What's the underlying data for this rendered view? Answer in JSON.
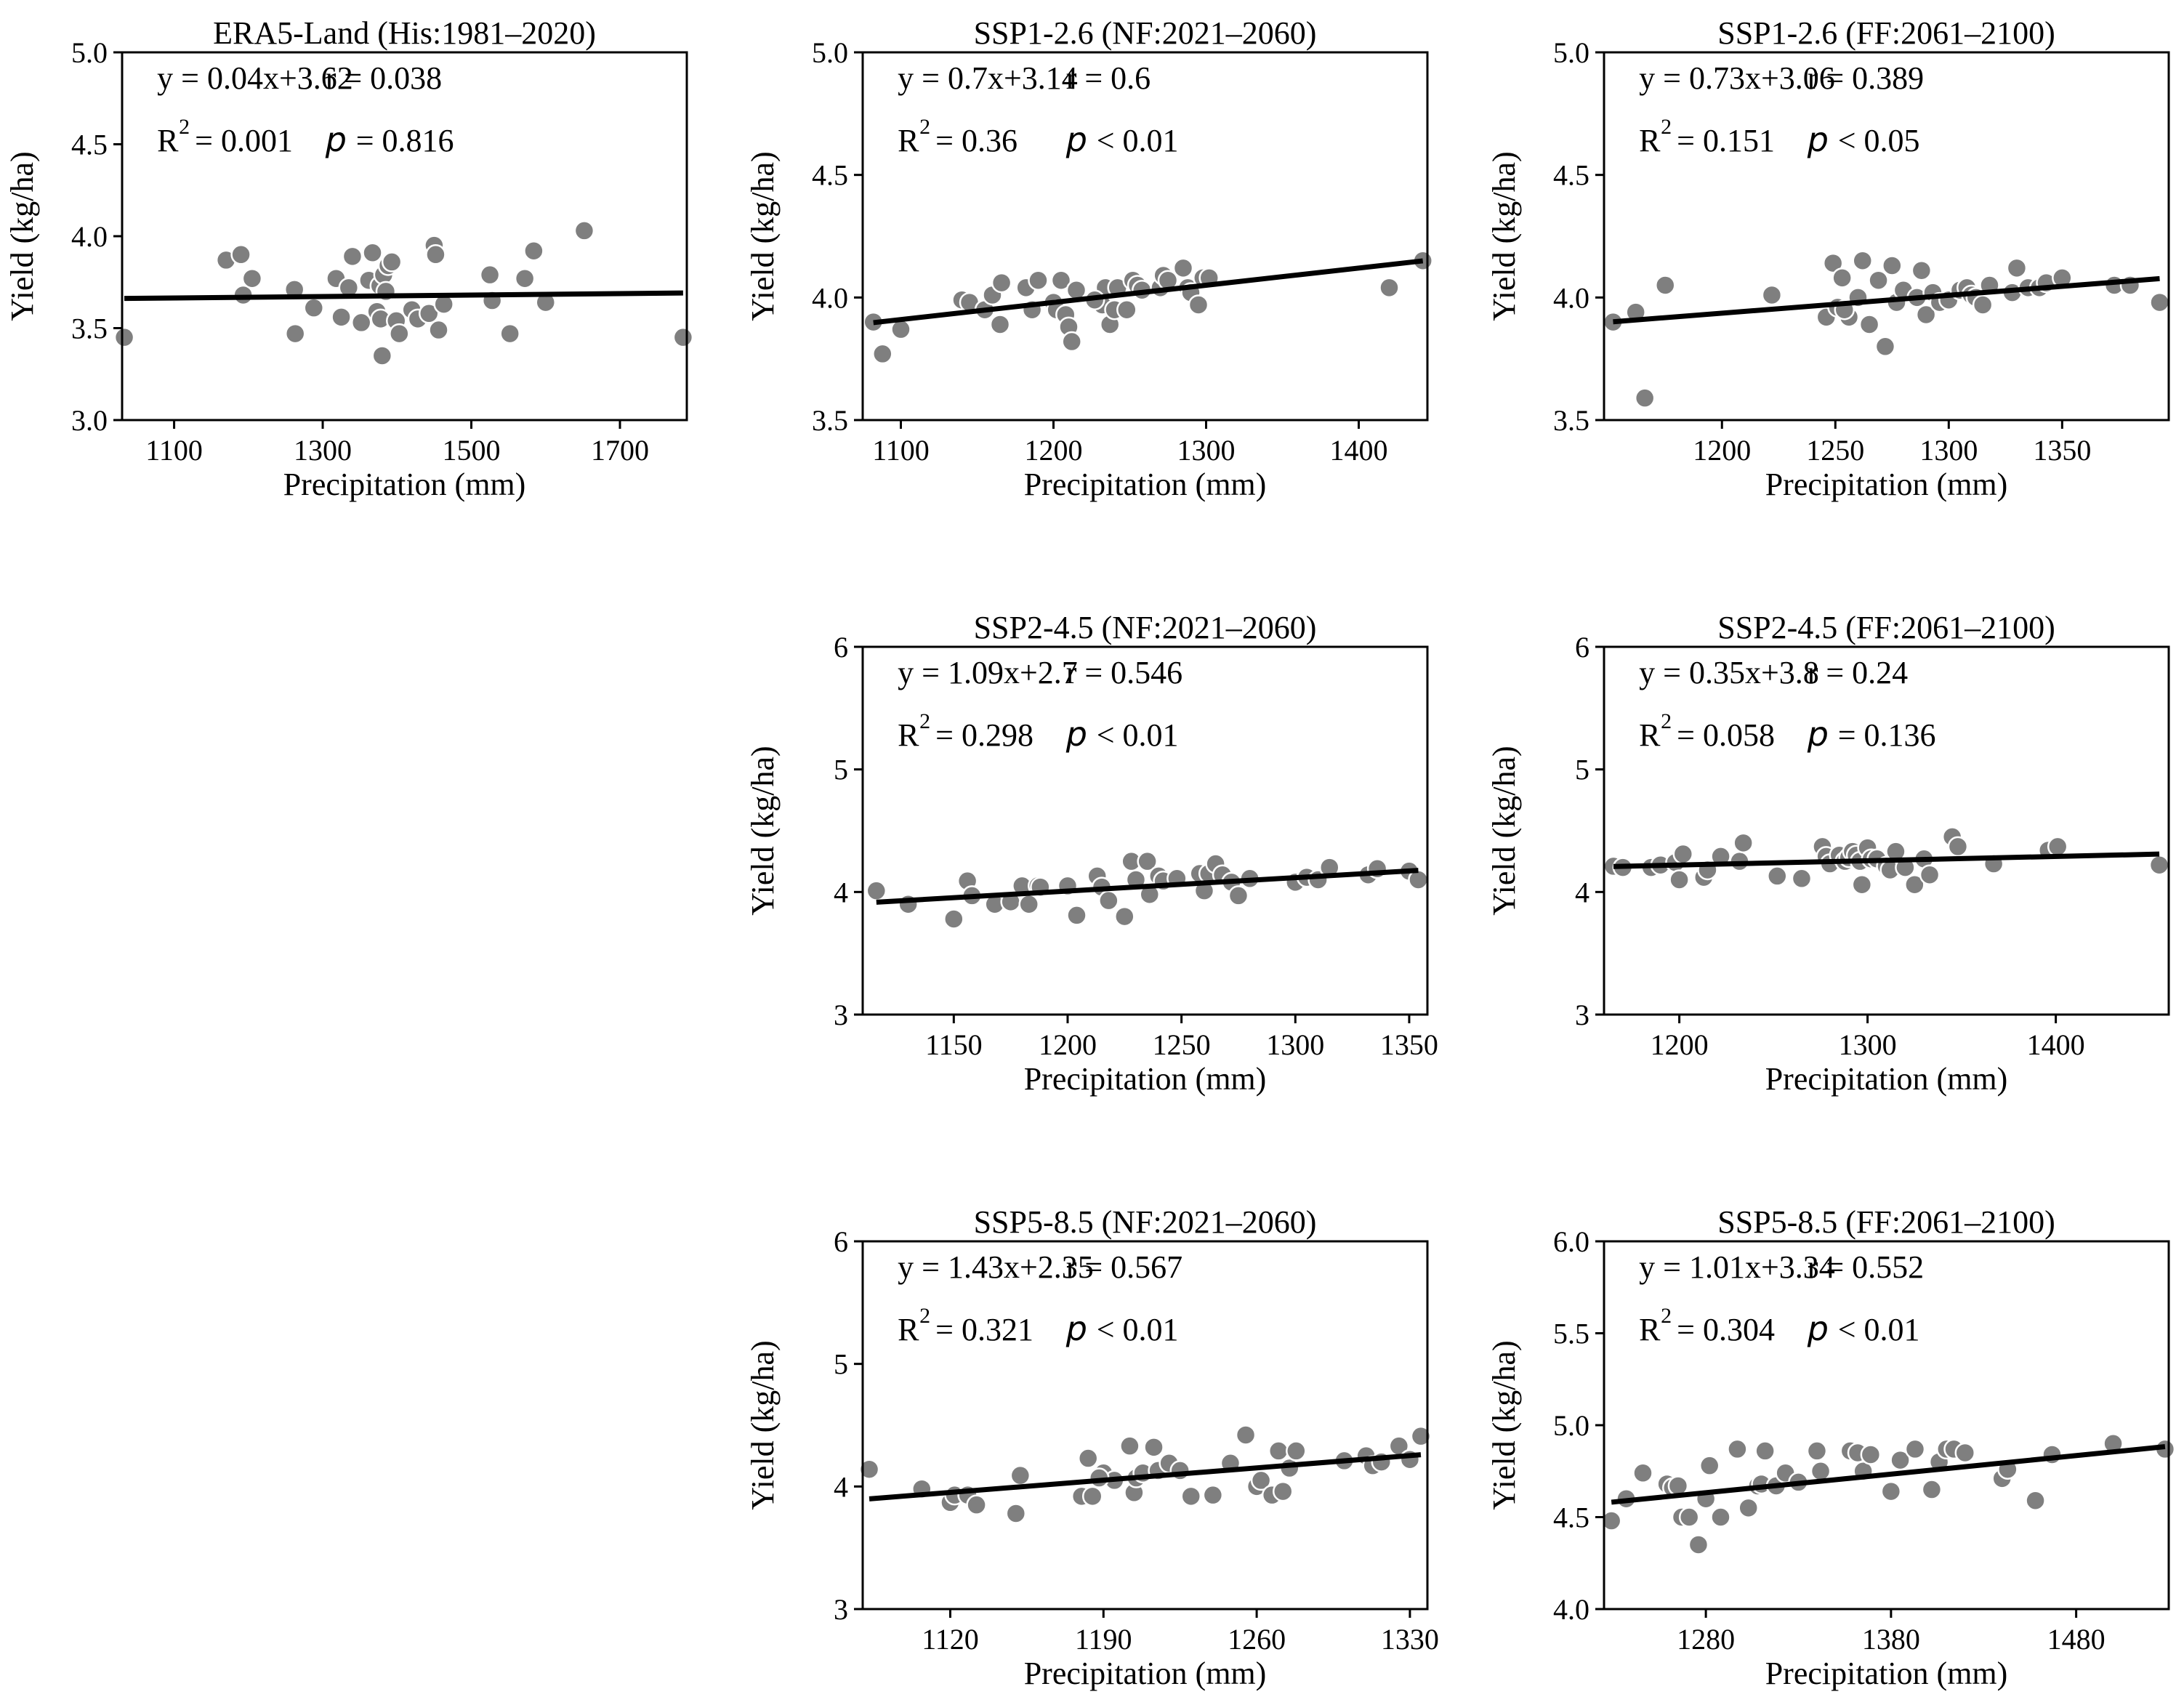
{
  "figure": {
    "x_axis_label": "Precipitation (mm)",
    "y_axis_label": "Yield (kg/ha)"
  },
  "colors": {
    "point_fill": "#7f7f7f",
    "point_stroke": "#ffffff",
    "fit_line": "#000000",
    "axis": "#000000"
  },
  "chart_data": [
    {
      "type": "scatter",
      "title": "ERA5-Land (His:1981–2020)",
      "xlabel": "Precipitation (mm)",
      "ylabel": "Yield (kg/ha)",
      "xlim": [
        1030,
        1790
      ],
      "ylim": [
        3.0,
        5.0
      ],
      "xticks": [
        1100,
        1300,
        1500,
        1700
      ],
      "yticks": [
        3.0,
        3.5,
        4.0,
        4.5,
        5.0
      ],
      "ytick_labels": [
        "3.0",
        "3.5",
        "4.0",
        "4.5",
        "5.0"
      ],
      "fit": {
        "slope_per_1000mm": 0.04,
        "intercept": 3.62
      },
      "stats": {
        "equation": "y = 0.04x+3.62",
        "r_label": "r = 0.038",
        "r2_sup": "2",
        "r2_value": "= 0.001",
        "p_symbol": "p",
        "p_value": "= 0.816"
      },
      "x": [
        1033,
        1170,
        1190,
        1193,
        1205,
        1262,
        1263,
        1288,
        1318,
        1325,
        1335,
        1340,
        1352,
        1362,
        1367,
        1373,
        1377,
        1378,
        1380,
        1382,
        1385,
        1388,
        1393,
        1399,
        1403,
        1420,
        1428,
        1443,
        1450,
        1452,
        1456,
        1463,
        1525,
        1528,
        1552,
        1572,
        1584,
        1600,
        1652,
        1785
      ],
      "y": [
        3.45,
        3.87,
        3.9,
        3.68,
        3.77,
        3.71,
        3.47,
        3.61,
        3.77,
        3.56,
        3.72,
        3.89,
        3.53,
        3.76,
        3.91,
        3.59,
        3.73,
        3.55,
        3.35,
        3.79,
        3.7,
        3.84,
        3.86,
        3.54,
        3.47,
        3.6,
        3.55,
        3.58,
        3.95,
        3.9,
        3.49,
        3.63,
        3.79,
        3.65,
        3.47,
        3.77,
        3.92,
        3.64,
        4.03,
        3.45
      ]
    },
    {
      "type": "scatter",
      "title": "SSP1-2.6 (NF:2021–2060)",
      "xlabel": "Precipitation (mm)",
      "ylabel": "Yield (kg/ha)",
      "xlim": [
        1075,
        1445
      ],
      "ylim": [
        3.5,
        5.0
      ],
      "xticks": [
        1100,
        1200,
        1300,
        1400
      ],
      "yticks": [
        3.5,
        4.0,
        4.5,
        5.0
      ],
      "ytick_labels": [
        "3.5",
        "4.0",
        "4.5",
        "5.0"
      ],
      "fit": {
        "slope_per_1000mm": 0.7,
        "intercept": 3.14
      },
      "stats": {
        "equation": "y = 0.7x+3.14",
        "r_label": "r = 0.6",
        "r2_sup": "2",
        "r2_value": "= 0.36",
        "p_symbol": "p",
        "p_value": "< 0.01"
      },
      "x": [
        1082,
        1088,
        1100,
        1140,
        1145,
        1155,
        1160,
        1165,
        1166,
        1182,
        1186,
        1190,
        1200,
        1202,
        1205,
        1208,
        1210,
        1212,
        1215,
        1232,
        1234,
        1237,
        1240,
        1242,
        1248,
        1252,
        1255,
        1258,
        1270,
        1272,
        1275,
        1285,
        1288,
        1290,
        1295,
        1298,
        1302,
        1420,
        1442,
        1227
      ],
      "y": [
        3.9,
        3.77,
        3.87,
        3.99,
        3.98,
        3.95,
        4.01,
        3.89,
        4.06,
        4.04,
        3.95,
        4.07,
        3.98,
        3.95,
        4.07,
        3.93,
        3.88,
        3.82,
        4.03,
        3.97,
        4.04,
        3.89,
        3.95,
        4.04,
        3.95,
        4.07,
        4.05,
        4.03,
        4.04,
        4.09,
        4.07,
        4.12,
        4.04,
        4.02,
        3.97,
        4.08,
        4.08,
        4.04,
        4.15,
        3.99
      ]
    },
    {
      "type": "scatter",
      "title": "SSP1-2.6 (FF:2061–2100)",
      "xlabel": "Precipitation (mm)",
      "ylabel": "Yield (kg/ha)",
      "xlim": [
        1148,
        1397
      ],
      "ylim": [
        3.5,
        5.0
      ],
      "xticks": [
        1200,
        1250,
        1300,
        1350
      ],
      "yticks": [
        3.5,
        4.0,
        4.5,
        5.0
      ],
      "ytick_labels": [
        "3.5",
        "4.0",
        "4.5",
        "5.0"
      ],
      "fit": {
        "slope_per_1000mm": 0.73,
        "intercept": 3.06
      },
      "stats": {
        "equation": "y = 0.73x+3.06",
        "r_label": "r = 0.389",
        "r2_sup": "2",
        "r2_value": "= 0.151",
        "p_symbol": "p",
        "p_value": "< 0.05"
      },
      "x": [
        1152,
        1162,
        1166,
        1175,
        1222,
        1246,
        1249,
        1251,
        1253,
        1256,
        1260,
        1262,
        1265,
        1269,
        1272,
        1275,
        1277,
        1280,
        1286,
        1288,
        1290,
        1293,
        1296,
        1300,
        1305,
        1308,
        1310,
        1312,
        1315,
        1328,
        1330,
        1335,
        1340,
        1343,
        1350,
        1373,
        1380,
        1393,
        1254,
        1318
      ],
      "y": [
        3.9,
        3.94,
        3.59,
        4.05,
        4.01,
        3.92,
        4.14,
        3.96,
        4.08,
        3.92,
        4.0,
        4.15,
        3.89,
        4.07,
        3.8,
        4.13,
        3.98,
        4.03,
        4.0,
        4.11,
        3.93,
        4.02,
        3.98,
        3.99,
        4.03,
        4.04,
        4.01,
        4.0,
        3.97,
        4.02,
        4.12,
        4.04,
        4.04,
        4.06,
        4.08,
        4.05,
        4.05,
        3.98,
        3.95,
        4.05
      ]
    },
    {
      "type": "scatter",
      "title": "SSP2-4.5 (NF:2021–2060)",
      "xlabel": "Precipitation (mm)",
      "ylabel": "Yield (kg/ha)",
      "xlim": [
        1110,
        1358
      ],
      "ylim": [
        3,
        6
      ],
      "xticks": [
        1150,
        1200,
        1250,
        1300,
        1350
      ],
      "yticks": [
        3,
        4,
        5,
        6
      ],
      "ytick_labels": [
        "3",
        "4",
        "5",
        "6"
      ],
      "fit": {
        "slope_per_1000mm": 1.09,
        "intercept": 2.7
      },
      "stats": {
        "equation": "y = 1.09x+2.7",
        "r_label": "r = 0.546",
        "r2_sup": "2",
        "r2_value": "= 0.298",
        "p_symbol": "p",
        "p_value": "< 0.01"
      },
      "x": [
        1116,
        1130,
        1150,
        1156,
        1158,
        1168,
        1175,
        1180,
        1183,
        1187,
        1188,
        1200,
        1204,
        1213,
        1215,
        1218,
        1225,
        1228,
        1230,
        1235,
        1236,
        1240,
        1242,
        1248,
        1258,
        1260,
        1262,
        1265,
        1268,
        1272,
        1275,
        1280,
        1300,
        1305,
        1310,
        1315,
        1332,
        1336,
        1350,
        1354
      ],
      "y": [
        4.01,
        3.9,
        3.78,
        4.09,
        3.97,
        3.9,
        3.92,
        4.05,
        3.9,
        4.05,
        4.04,
        4.05,
        3.81,
        4.13,
        4.04,
        3.93,
        3.8,
        4.25,
        4.1,
        4.25,
        3.98,
        4.13,
        4.09,
        4.11,
        4.15,
        4.01,
        4.15,
        4.23,
        4.14,
        4.08,
        3.97,
        4.11,
        4.08,
        4.12,
        4.1,
        4.2,
        4.14,
        4.19,
        4.17,
        4.1
      ]
    },
    {
      "type": "scatter",
      "title": "SSP2-4.5 (FF:2061–2100)",
      "xlabel": "Precipitation (mm)",
      "ylabel": "Yield (kg/ha)",
      "xlim": [
        1160,
        1460
      ],
      "ylim": [
        3,
        6
      ],
      "xticks": [
        1200,
        1300,
        1400
      ],
      "yticks": [
        3,
        4,
        5,
        6
      ],
      "ytick_labels": [
        "3",
        "4",
        "5",
        "6"
      ],
      "fit": {
        "slope_per_1000mm": 0.35,
        "intercept": 3.8
      },
      "stats": {
        "equation": "y = 0.35x+3.8",
        "r_label": "r = 0.24",
        "r2_sup": "2",
        "r2_value": "= 0.058",
        "p_symbol": "p",
        "p_value": "= 0.136"
      },
      "x": [
        1165,
        1185,
        1190,
        1198,
        1200,
        1202,
        1213,
        1215,
        1222,
        1232,
        1234,
        1252,
        1265,
        1276,
        1278,
        1280,
        1285,
        1288,
        1290,
        1292,
        1294,
        1296,
        1297,
        1300,
        1302,
        1305,
        1310,
        1312,
        1315,
        1320,
        1325,
        1330,
        1333,
        1345,
        1348,
        1367,
        1396,
        1401,
        1455,
        1170
      ],
      "y": [
        4.21,
        4.2,
        4.22,
        4.24,
        4.1,
        4.31,
        4.12,
        4.18,
        4.29,
        4.25,
        4.4,
        4.13,
        4.11,
        4.37,
        4.29,
        4.23,
        4.3,
        4.25,
        4.28,
        4.33,
        4.3,
        4.25,
        4.06,
        4.36,
        4.27,
        4.27,
        4.21,
        4.18,
        4.33,
        4.2,
        4.06,
        4.27,
        4.14,
        4.45,
        4.37,
        4.23,
        4.34,
        4.37,
        4.22,
        4.2
      ]
    },
    {
      "type": "scatter",
      "title": "SSP5-8.5 (NF:2021–2060)",
      "xlabel": "Precipitation (mm)",
      "ylabel": "Yield (kg/ha)",
      "xlim": [
        1080,
        1338
      ],
      "ylim": [
        3,
        6
      ],
      "xticks": [
        1120,
        1190,
        1260,
        1330
      ],
      "yticks": [
        3,
        4,
        5,
        6
      ],
      "ytick_labels": [
        "3",
        "4",
        "5",
        "6"
      ],
      "fit": {
        "slope_per_1000mm": 1.43,
        "intercept": 2.35
      },
      "stats": {
        "equation": "y = 1.43x+2.35",
        "r_label": "r = 0.567",
        "r2_sup": "2",
        "r2_value": "= 0.321",
        "p_symbol": "p",
        "p_value": "< 0.01"
      },
      "x": [
        1083,
        1107,
        1120,
        1122,
        1128,
        1132,
        1150,
        1152,
        1180,
        1183,
        1185,
        1190,
        1195,
        1202,
        1204,
        1205,
        1208,
        1213,
        1215,
        1220,
        1225,
        1230,
        1240,
        1248,
        1255,
        1260,
        1262,
        1267,
        1270,
        1272,
        1275,
        1278,
        1300,
        1310,
        1313,
        1317,
        1325,
        1330,
        1335,
        1188
      ],
      "y": [
        4.14,
        3.98,
        3.87,
        3.93,
        3.93,
        3.85,
        3.78,
        4.09,
        3.92,
        4.23,
        3.92,
        4.11,
        4.05,
        4.33,
        3.95,
        4.07,
        4.11,
        4.32,
        4.13,
        4.19,
        4.13,
        3.92,
        3.93,
        4.19,
        4.42,
        4.0,
        4.05,
        3.93,
        4.29,
        3.96,
        4.15,
        4.29,
        4.21,
        4.25,
        4.17,
        4.2,
        4.33,
        4.22,
        4.41,
        4.07
      ]
    },
    {
      "type": "scatter",
      "title": "SSP5-8.5 (FF:2061–2100)",
      "xlabel": "Precipitation (mm)",
      "ylabel": "Yield (kg/ha)",
      "xlim": [
        1225,
        1530
      ],
      "ylim": [
        4.0,
        6.0
      ],
      "xticks": [
        1280,
        1380,
        1480
      ],
      "yticks": [
        4.0,
        4.5,
        5.0,
        5.5,
        6.0
      ],
      "ytick_labels": [
        "4.0",
        "4.5",
        "5.0",
        "5.5",
        "6.0"
      ],
      "fit": {
        "slope_per_1000mm": 1.01,
        "intercept": 3.34
      },
      "stats": {
        "equation": "y = 1.01x+3.34",
        "r_label": "r = 0.552",
        "r2_sup": "2",
        "r2_value": "= 0.304",
        "p_symbol": "p",
        "p_value": "< 0.01"
      },
      "x": [
        1229,
        1237,
        1246,
        1259,
        1262,
        1265,
        1267,
        1271,
        1276,
        1280,
        1282,
        1288,
        1297,
        1303,
        1308,
        1310,
        1312,
        1318,
        1323,
        1330,
        1340,
        1342,
        1358,
        1362,
        1365,
        1369,
        1380,
        1385,
        1393,
        1402,
        1406,
        1410,
        1414,
        1420,
        1440,
        1443,
        1458,
        1467,
        1500,
        1528
      ],
      "y": [
        4.48,
        4.6,
        4.74,
        4.68,
        4.66,
        4.67,
        4.5,
        4.5,
        4.35,
        4.6,
        4.78,
        4.5,
        4.87,
        4.55,
        4.67,
        4.68,
        4.86,
        4.67,
        4.74,
        4.69,
        4.86,
        4.75,
        4.86,
        4.85,
        4.75,
        4.84,
        4.64,
        4.81,
        4.87,
        4.65,
        4.8,
        4.87,
        4.87,
        4.85,
        4.71,
        4.76,
        4.59,
        4.84,
        4.9,
        4.87
      ]
    }
  ]
}
